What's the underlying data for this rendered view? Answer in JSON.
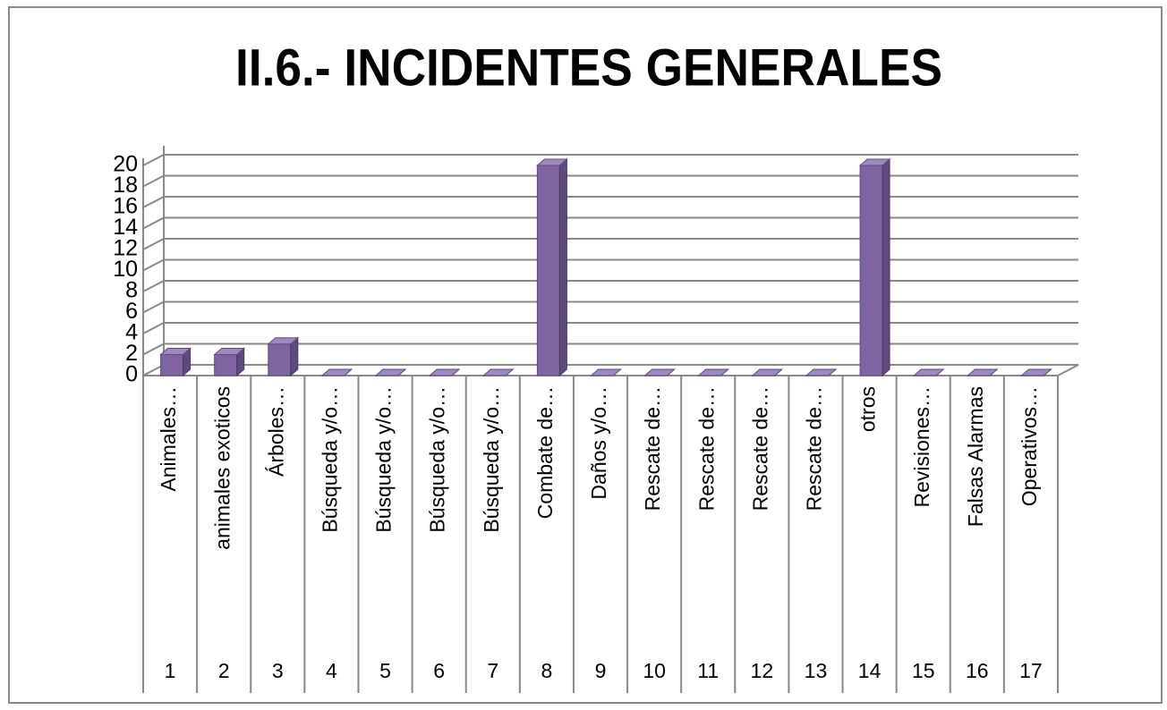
{
  "chart_data": {
    "type": "bar3d",
    "title": "II.6.- INCIDENTES GENERALES",
    "categories": [
      "Animales…",
      "animales exoticos",
      "Árboles…",
      "Búsqueda y/o…",
      "Búsqueda y/o…",
      "Búsqueda y/o…",
      "Búsqueda y/o…",
      "Combate de…",
      "Daños y/o…",
      "Rescate de…",
      "Rescate de…",
      "Rescate de…",
      "Rescate de…",
      "otros",
      "Revisiones…",
      "Falsas Alarmas",
      "Operativos…"
    ],
    "category_groups": [
      "1",
      "2",
      "3",
      "4",
      "5",
      "6",
      "7",
      "8",
      "9",
      "10",
      "11",
      "12",
      "13",
      "14",
      "15",
      "16",
      "17"
    ],
    "values": [
      2,
      2,
      3,
      0,
      0,
      0,
      0,
      20,
      0,
      0,
      0,
      0,
      0,
      20,
      0,
      0,
      0
    ],
    "color": "#8064a2",
    "ylim": [
      0,
      20
    ],
    "yticks": [
      0,
      2,
      4,
      6,
      8,
      10,
      12,
      14,
      16,
      18,
      20
    ],
    "grid": true
  }
}
